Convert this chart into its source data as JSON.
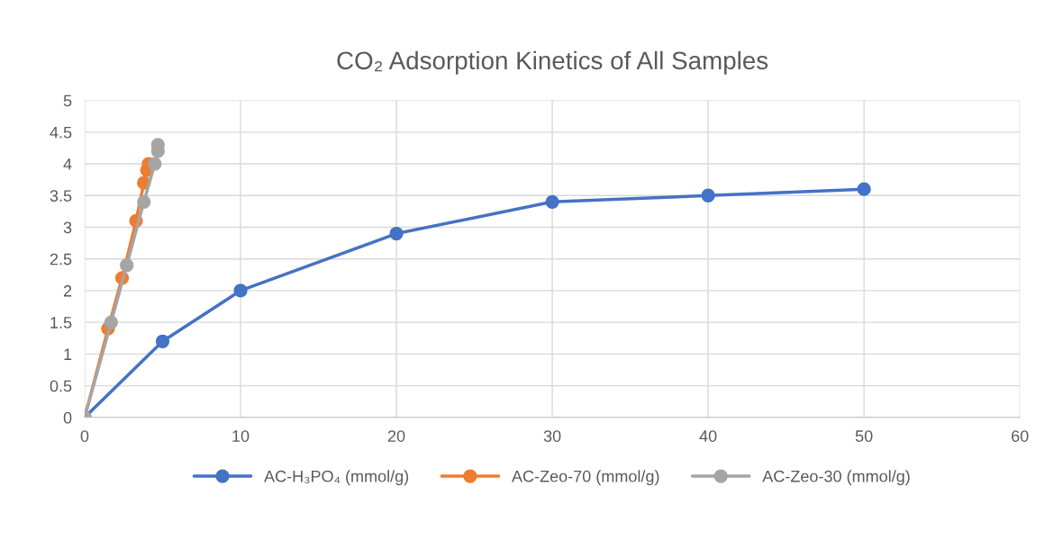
{
  "chart_data": {
    "type": "line",
    "title": "CO₂ Adsorption Kinetics of All Samples",
    "xlim": [
      0,
      60
    ],
    "xticks": [
      0,
      10,
      20,
      30,
      40,
      50,
      60
    ],
    "ylim": [
      0,
      5
    ],
    "yticks": [
      0,
      0.5,
      1,
      1.5,
      2,
      2.5,
      3,
      3.5,
      4,
      4.5,
      5
    ],
    "grid": true,
    "legend": "bottom",
    "marker": "circle",
    "line_style": "solid",
    "series": [
      {
        "name": "AC-H₃PO₄ (mmol/g)",
        "color": "#4472c4",
        "x": [
          0,
          5,
          10,
          20,
          30,
          40,
          50
        ],
        "values": [
          0,
          1.2,
          2.0,
          2.9,
          3.4,
          3.5,
          3.6
        ]
      },
      {
        "name": "AC-Zeo-70 (mmol/g)",
        "color": "#ed7d31",
        "x": [
          0,
          1.5,
          2.4,
          3.3,
          3.8,
          4.0,
          4.1
        ],
        "values": [
          0,
          1.4,
          2.2,
          3.1,
          3.7,
          3.9,
          4.0
        ]
      },
      {
        "name": "AC-Zeo-30 (mmol/g)",
        "color": "#a5a5a5",
        "x": [
          0,
          1.7,
          2.7,
          3.8,
          4.5,
          4.7,
          4.7
        ],
        "values": [
          0,
          1.5,
          2.4,
          3.4,
          4.0,
          4.2,
          4.3
        ]
      }
    ]
  }
}
